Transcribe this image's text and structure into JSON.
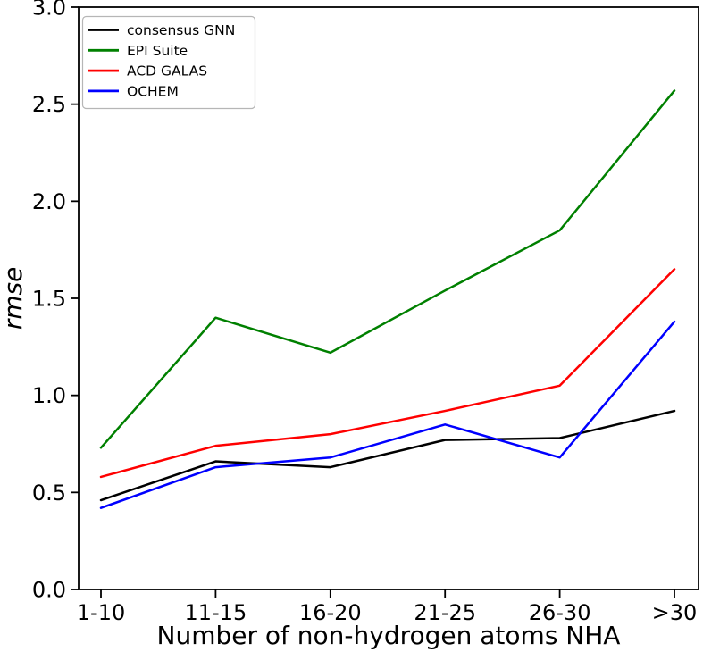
{
  "chart_data": {
    "type": "line",
    "title": "",
    "xlabel": "Number of non-hydrogen atoms NHA",
    "ylabel": "rmse",
    "categories": [
      "1-10",
      "11-15",
      "16-20",
      "21-25",
      "26-30",
      ">30"
    ],
    "series": [
      {
        "name": "consensus GNN",
        "color": "#000000",
        "values": [
          0.46,
          0.66,
          0.63,
          0.77,
          0.78,
          0.92
        ]
      },
      {
        "name": "EPI Suite",
        "color": "#008000",
        "values": [
          0.73,
          1.4,
          1.22,
          1.54,
          1.85,
          2.57
        ]
      },
      {
        "name": "ACD GALAS",
        "color": "#ff0000",
        "values": [
          0.58,
          0.74,
          0.8,
          0.92,
          1.05,
          1.65
        ]
      },
      {
        "name": "OCHEM",
        "color": "#0000ff",
        "values": [
          0.42,
          0.63,
          0.68,
          0.85,
          0.68,
          1.38
        ]
      }
    ],
    "ylim": [
      0.0,
      3.0
    ],
    "yticks": [
      "0.0",
      "0.5",
      "1.0",
      "1.5",
      "2.0",
      "2.5",
      "3.0"
    ],
    "grid": false,
    "legend_position": "upper left",
    "axis_color": "#000000",
    "background_color": "#ffffff",
    "legend_border_color": "#b6b6b6"
  }
}
